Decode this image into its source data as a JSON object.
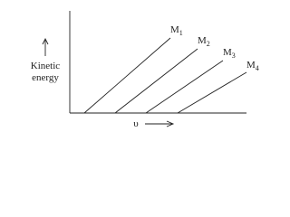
{
  "y_axis_label": [
    "Kinetic",
    "energy"
  ],
  "x_axis_label": "υ",
  "lines": [
    {
      "name": "M",
      "subscript": "1"
    },
    {
      "name": "M",
      "subscript": "2"
    },
    {
      "name": "M",
      "subscript": "3"
    },
    {
      "name": "M",
      "subscript": "4"
    }
  ]
}
